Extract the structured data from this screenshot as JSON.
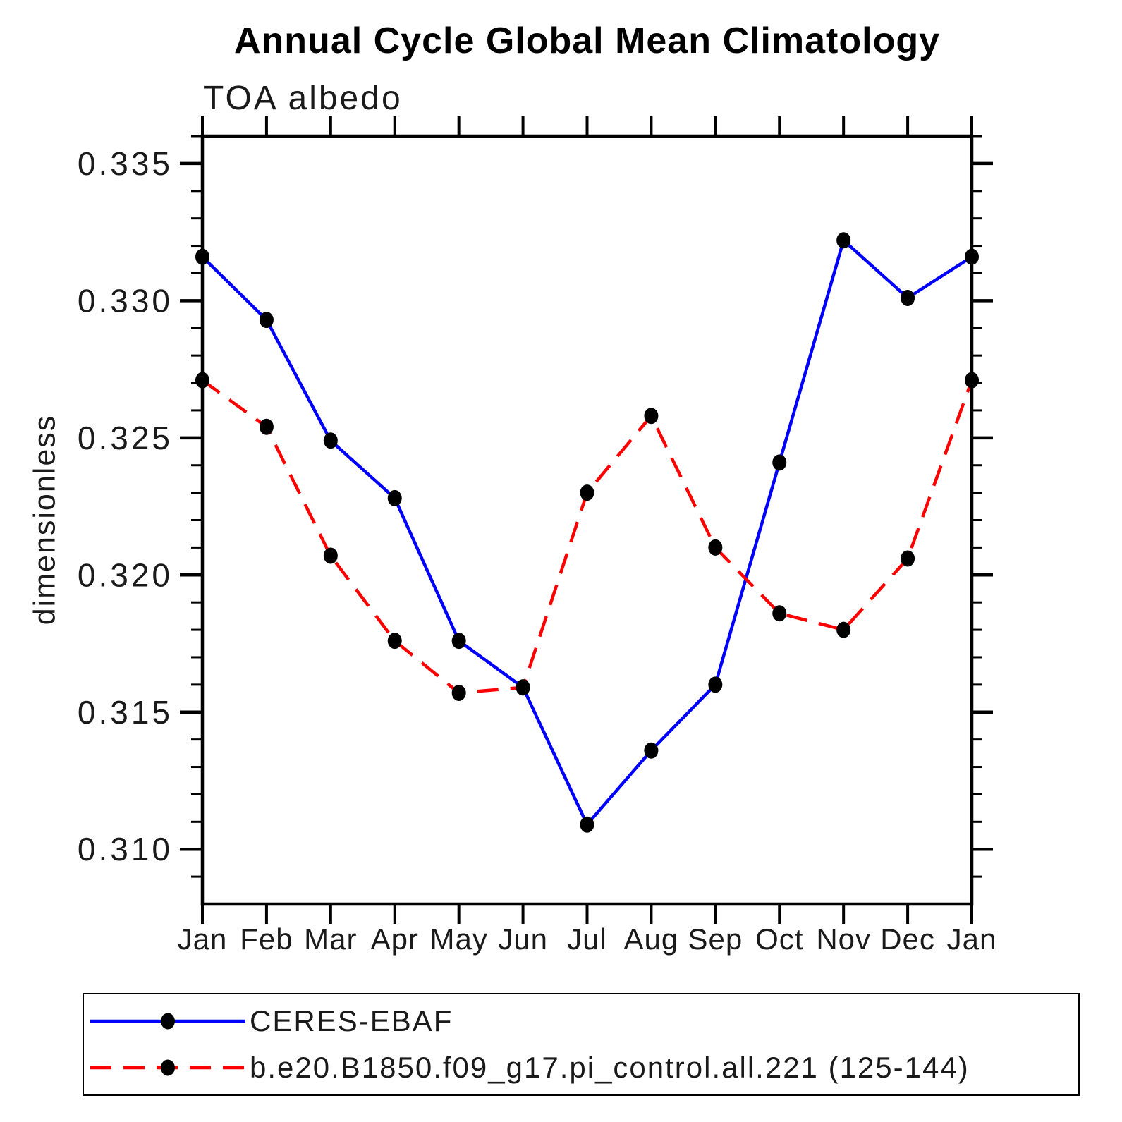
{
  "chart": {
    "title": "Annual Cycle Global Mean Climatology",
    "subtitle": "TOA albedo",
    "ylabel": "dimensionless"
  },
  "chart_data": {
    "type": "line",
    "title": "Annual Cycle Global Mean Climatology",
    "subtitle": "TOA albedo",
    "xlabel": "",
    "ylabel": "dimensionless",
    "categories": [
      "Jan",
      "Feb",
      "Mar",
      "Apr",
      "May",
      "Jun",
      "Jul",
      "Aug",
      "Sep",
      "Oct",
      "Nov",
      "Dec",
      "Jan"
    ],
    "ylim": [
      0.308,
      0.336
    ],
    "yticks_major": [
      0.31,
      0.315,
      0.32,
      0.325,
      0.33,
      0.335
    ],
    "ytick_labels": [
      "0.310",
      "0.315",
      "0.320",
      "0.325",
      "0.330",
      "0.335"
    ],
    "minor_tick_step": 0.001,
    "grid": false,
    "legend_position": "bottom-left",
    "axis_color": "#000000",
    "marker_color": "#000000",
    "series": [
      {
        "name": "CERES-EBAF",
        "color": "#0000ff",
        "style": "solid",
        "marker": "circle",
        "values": [
          0.3316,
          0.3293,
          0.3249,
          0.3228,
          0.3176,
          0.3159,
          0.3109,
          0.3136,
          0.316,
          0.3241,
          0.3322,
          0.3301,
          0.3316
        ]
      },
      {
        "name": "b.e20.B1850.f09_g17.pi_control.all.221 (125-144)",
        "color": "#ff0000",
        "style": "dashed",
        "dash": "30 17",
        "marker": "circle",
        "values": [
          0.3271,
          0.3254,
          0.3207,
          0.3176,
          0.3157,
          0.3159,
          0.323,
          0.3258,
          0.321,
          0.3186,
          0.318,
          0.3206,
          0.3271
        ]
      }
    ]
  },
  "legend": {
    "items": [
      {
        "label": "CERES-EBAF"
      },
      {
        "label": "b.e20.B1850.f09_g17.pi_control.all.221 (125-144)"
      }
    ]
  }
}
